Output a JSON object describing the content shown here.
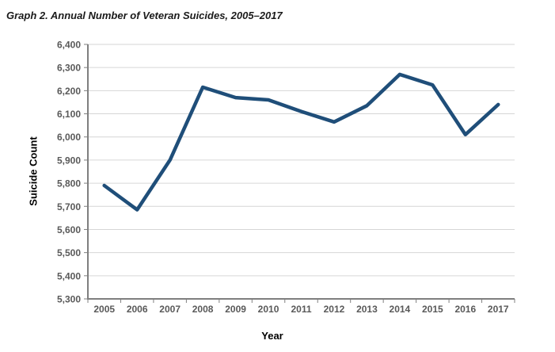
{
  "chart": {
    "title": "Graph 2. Annual Number of Veteran Suicides, 2005–2017",
    "ylabel": "Suicide Count",
    "xlabel": "Year"
  },
  "chart_data": {
    "type": "line",
    "title": "Graph 2. Annual Number of Veteran Suicides, 2005–2017",
    "xlabel": "Year",
    "ylabel": "Suicide Count",
    "categories": [
      "2005",
      "2006",
      "2007",
      "2008",
      "2009",
      "2010",
      "2011",
      "2012",
      "2013",
      "2014",
      "2015",
      "2016",
      "2017"
    ],
    "values": [
      5790,
      5685,
      5900,
      6215,
      6170,
      6160,
      6110,
      6065,
      6135,
      6270,
      6225,
      6010,
      6140
    ],
    "ylim": [
      5300,
      6400
    ],
    "ytick_step": 100,
    "ytick_labels": [
      "5,300",
      "5,400",
      "5,500",
      "5,600",
      "5,700",
      "5,800",
      "5,900",
      "6,000",
      "6,100",
      "6,200",
      "6,300",
      "6,400"
    ],
    "grid": "horizontal-major",
    "legend": "none",
    "colors": {
      "line": "#1F4E79",
      "gridline": "#D6D6D6",
      "axis": "#7F7F7F",
      "tick_label": "#595959",
      "title_text": "#1a1a1a"
    }
  }
}
